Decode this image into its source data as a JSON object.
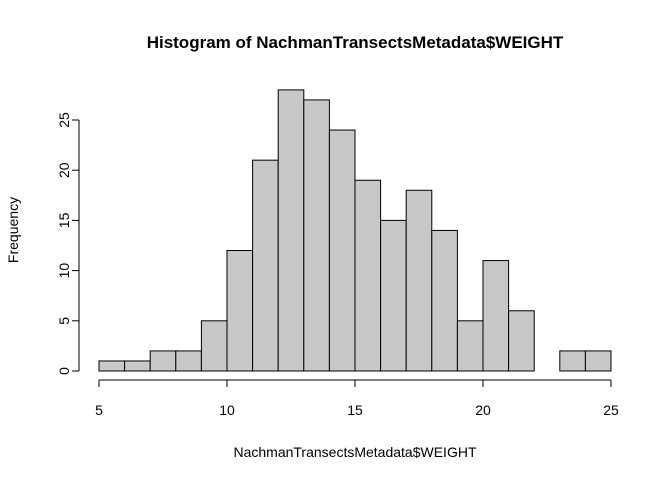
{
  "chart_data": {
    "type": "bar",
    "title": "Histogram of NachmanTransectsMetadata$WEIGHT",
    "xlabel": "NachmanTransectsMetadata$WEIGHT",
    "ylabel": "Frequency",
    "bin_edges": [
      5,
      6,
      7,
      8,
      9,
      10,
      11,
      12,
      13,
      14,
      15,
      16,
      17,
      18,
      19,
      20,
      21,
      22,
      23,
      24,
      25
    ],
    "values": [
      1,
      1,
      2,
      2,
      5,
      12,
      21,
      28,
      27,
      24,
      19,
      15,
      18,
      14,
      5,
      11,
      6,
      0,
      2,
      2
    ],
    "xlim": [
      5,
      25
    ],
    "ylim": [
      0,
      28
    ],
    "x_ticks": [
      5,
      10,
      15,
      20,
      25
    ],
    "x_tick_labels": [
      "5",
      "10",
      "15",
      "20",
      "25"
    ],
    "y_ticks": [
      0,
      5,
      10,
      15,
      20,
      25
    ],
    "y_tick_labels": [
      "0",
      "5",
      "10",
      "15",
      "20",
      "25"
    ],
    "grid": false,
    "bar_color": "#c8c8c8"
  }
}
